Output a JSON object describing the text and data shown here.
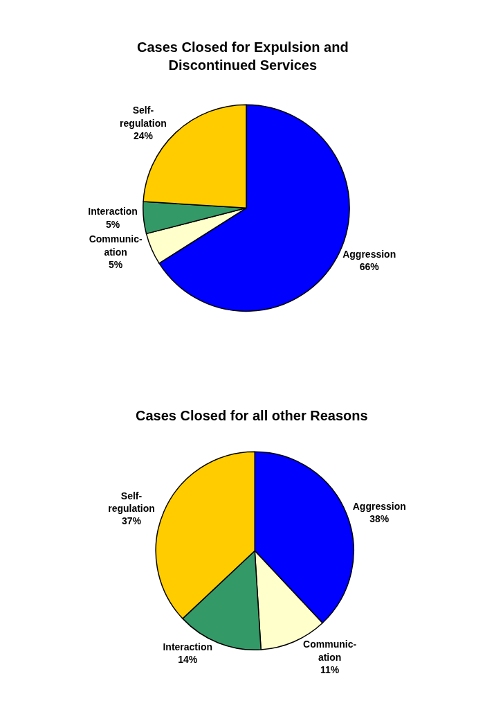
{
  "chart_data": [
    {
      "type": "pie",
      "title": "Cases Closed for Expulsion and\nDiscontinued Services",
      "categories": [
        "Aggression",
        "Communic-\nation",
        "Interaction",
        "Self-\nregulation"
      ],
      "values": [
        66,
        5,
        5,
        24
      ],
      "value_labels": [
        "66%",
        "5%",
        "5%",
        "24%"
      ],
      "colors": [
        "#0000ff",
        "#ffffcc",
        "#339966",
        "#ffcc00"
      ]
    },
    {
      "type": "pie",
      "title": "Cases Closed for all other Reasons",
      "categories": [
        "Aggression",
        "Communic-\nation",
        "Interaction",
        "Self-\nregulation"
      ],
      "values": [
        38,
        11,
        14,
        37
      ],
      "value_labels": [
        "38%",
        "11%",
        "14%",
        "37%"
      ],
      "colors": [
        "#0000ff",
        "#ffffcc",
        "#339966",
        "#ffcc00"
      ]
    }
  ]
}
